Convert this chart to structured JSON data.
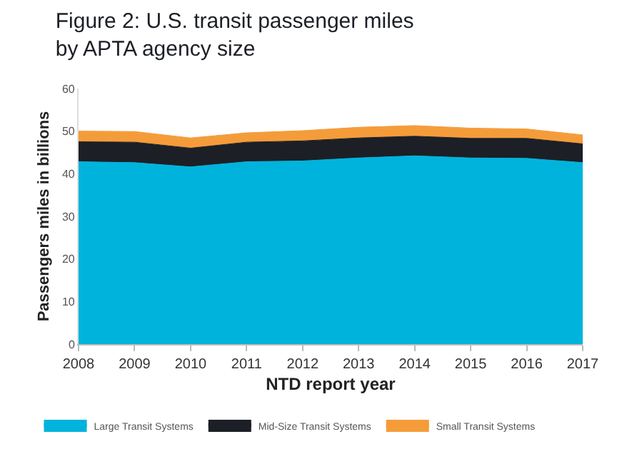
{
  "chart_data": {
    "type": "area",
    "stacked": true,
    "title": "Figure 2: U.S. transit passenger miles by APTA agency size",
    "xlabel": "NTD report year",
    "ylabel": "Passengers miles in billions",
    "x": [
      2008,
      2009,
      2010,
      2011,
      2012,
      2013,
      2014,
      2015,
      2016,
      2017
    ],
    "xlim": [
      2008,
      2017
    ],
    "xticks": [
      2008,
      2009,
      2010,
      2011,
      2012,
      2013,
      2014,
      2015,
      2016,
      2017
    ],
    "ylim": [
      0,
      60
    ],
    "yticks": [
      0,
      10,
      20,
      30,
      40,
      50,
      60
    ],
    "legend": "bottom",
    "series": [
      {
        "name": "Large Transit Systems",
        "color": "#00b3dc",
        "values": [
          42.8,
          42.6,
          41.6,
          42.8,
          43.0,
          43.7,
          44.2,
          43.7,
          43.6,
          42.6
        ]
      },
      {
        "name": "Mid-Size Transit Systems",
        "color": "#1c1f26",
        "values": [
          4.7,
          4.8,
          4.4,
          4.6,
          4.7,
          4.7,
          4.6,
          4.6,
          4.7,
          4.4
        ]
      },
      {
        "name": "Small Transit Systems",
        "color": "#f59c3a",
        "values": [
          2.5,
          2.5,
          2.4,
          2.2,
          2.4,
          2.5,
          2.5,
          2.4,
          2.2,
          2.1
        ]
      }
    ]
  }
}
